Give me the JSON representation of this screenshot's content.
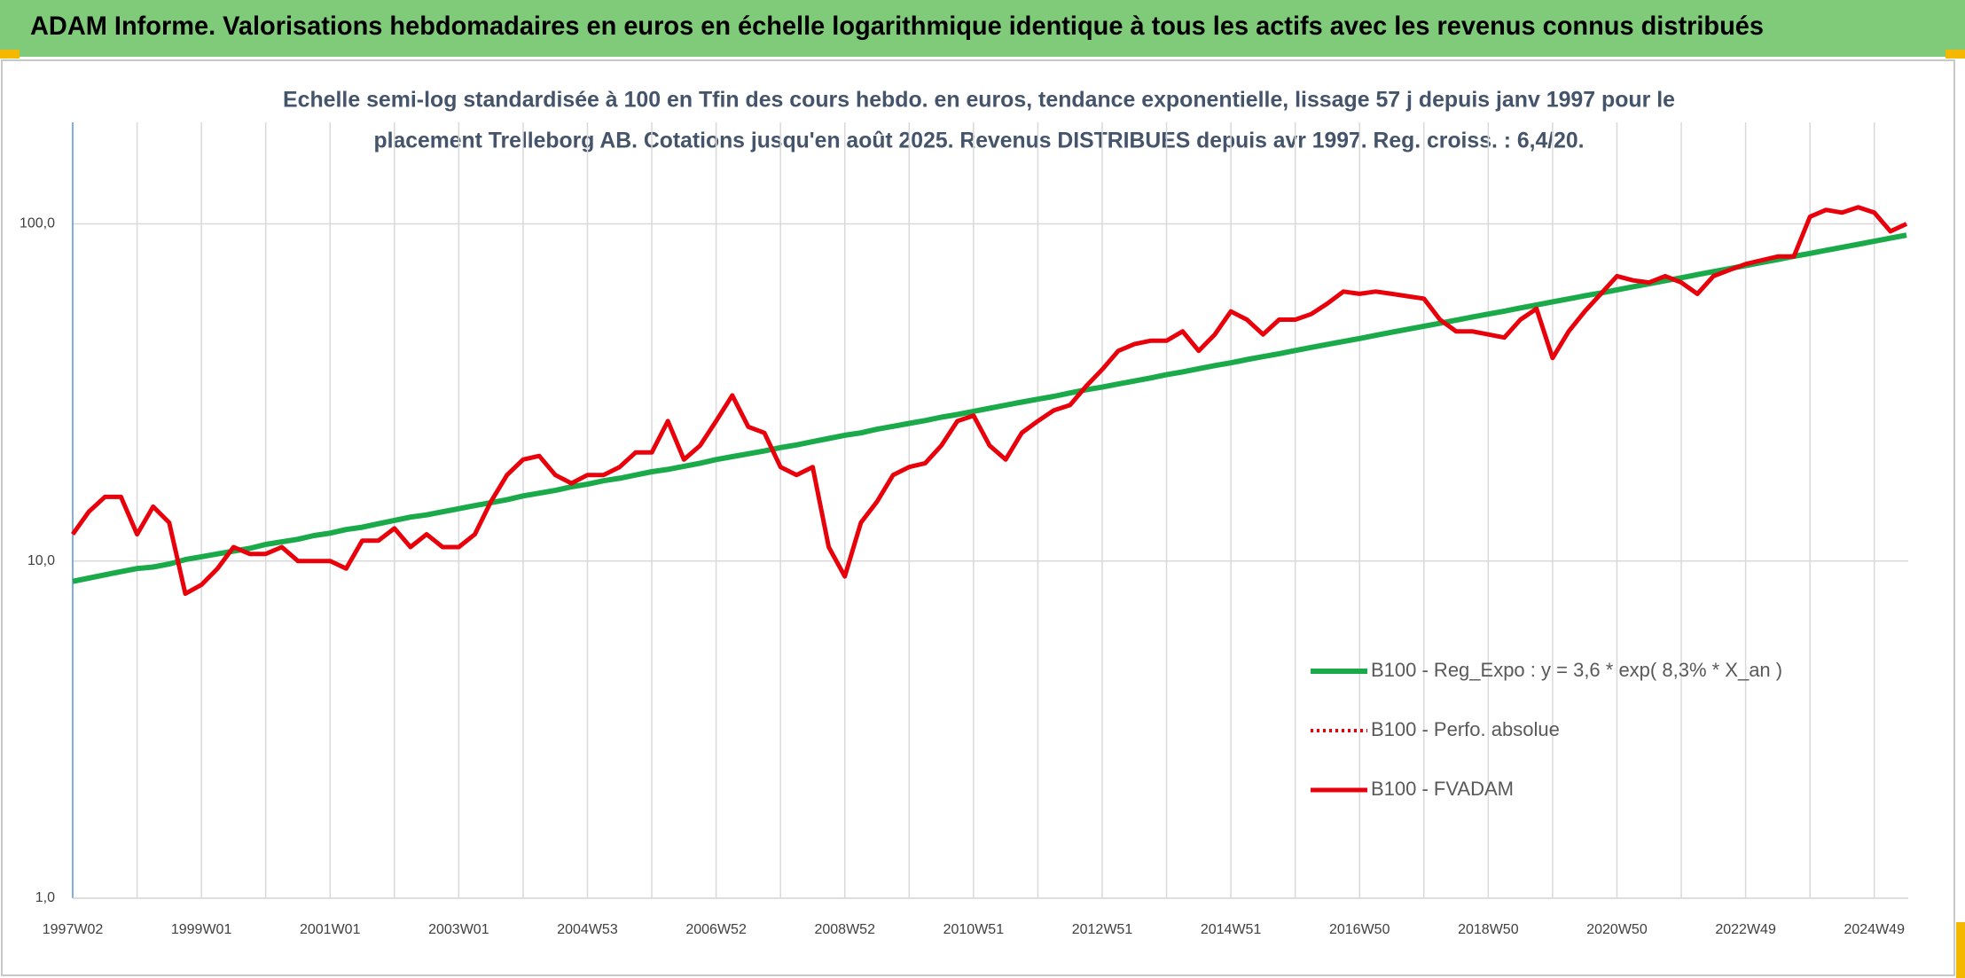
{
  "chart_data": {
    "type": "line",
    "title": "ADAM Informe. Valorisations hebdomadaires en euros en échelle logarithmique identique à tous les actifs avec les revenus connus distribués",
    "subtitle": [
      "Echelle semi-log standardisée à 100 en Tfin des cours hebdo. en euros, tendance exponentielle, lissage 57 j depuis janv 1997 pour le",
      "placement Trelleborg AB. Cotations jusqu'en août 2025. Revenus DISTRIBUES depuis avr 1997. Reg. croiss. : 6,4/20."
    ],
    "log_scale": true,
    "grid": true,
    "legend": "lower right",
    "ylim": [
      1,
      200
    ],
    "yticks": [
      {
        "value": 1,
        "label": "1,0"
      },
      {
        "value": 10,
        "label": "10,0"
      },
      {
        "value": 100,
        "label": "100,0"
      }
    ],
    "categories": [
      "1997W02",
      null,
      null,
      null,
      null,
      null,
      null,
      null,
      "1999W01",
      null,
      null,
      null,
      null,
      null,
      null,
      null,
      "2001W01",
      null,
      null,
      null,
      null,
      null,
      null,
      null,
      "2003W01",
      null,
      null,
      null,
      null,
      null,
      null,
      null,
      "2004W53",
      null,
      null,
      null,
      null,
      null,
      null,
      null,
      "2006W52",
      null,
      null,
      null,
      null,
      null,
      null,
      null,
      "2008W52",
      null,
      null,
      null,
      null,
      null,
      null,
      null,
      "2010W51",
      null,
      null,
      null,
      null,
      null,
      null,
      null,
      "2012W51",
      null,
      null,
      null,
      null,
      null,
      null,
      null,
      "2014W51",
      null,
      null,
      null,
      null,
      null,
      null,
      null,
      "2016W50",
      null,
      null,
      null,
      null,
      null,
      null,
      null,
      "2018W50",
      null,
      null,
      null,
      null,
      null,
      null,
      null,
      "2020W50",
      null,
      null,
      null,
      null,
      null,
      null,
      null,
      "2022W49",
      null,
      null,
      null,
      null,
      null,
      null,
      null,
      "2024W49",
      null,
      null
    ],
    "series": [
      {
        "name": "B100 - Reg_Expo : y = 3,6 * exp( 8,3% *  X_an )",
        "color": "#1aaa4a",
        "width": 6,
        "values": [
          8.7,
          8.9,
          9.1,
          9.3,
          9.5,
          9.6,
          9.8,
          10.1,
          10.3,
          10.5,
          10.7,
          10.9,
          11.2,
          11.4,
          11.6,
          11.9,
          12.1,
          12.4,
          12.6,
          12.9,
          13.2,
          13.5,
          13.7,
          14.0,
          14.3,
          14.6,
          14.9,
          15.2,
          15.6,
          15.9,
          16.2,
          16.6,
          16.9,
          17.3,
          17.6,
          18.0,
          18.4,
          18.7,
          19.1,
          19.5,
          20.0,
          20.4,
          20.8,
          21.2,
          21.7,
          22.1,
          22.6,
          23.1,
          23.6,
          24.0,
          24.6,
          25.1,
          25.6,
          26.1,
          26.7,
          27.2,
          27.8,
          28.4,
          29.0,
          29.6,
          30.2,
          30.8,
          31.5,
          32.2,
          32.8,
          33.5,
          34.2,
          34.9,
          35.7,
          36.4,
          37.2,
          38.0,
          38.7,
          39.6,
          40.4,
          41.2,
          42.1,
          43.0,
          43.9,
          44.8,
          45.7,
          46.7,
          47.7,
          48.7,
          49.7,
          50.7,
          51.8,
          52.9,
          54.0,
          55.1,
          56.3,
          57.5,
          58.7,
          59.9,
          61.2,
          62.4,
          63.7,
          65.1,
          66.4,
          67.8,
          69.2,
          70.7,
          72.2,
          73.7,
          75.2,
          76.8,
          78.4,
          80.1,
          81.7,
          83.5,
          85.2,
          87.0,
          88.8,
          90.7,
          92.6
        ]
      },
      {
        "name": "B100 - Perfo. absolue",
        "color": "#e8000b",
        "width": 4,
        "dash": "dotted"
      },
      {
        "name": "B100 - FVADAM",
        "color": "#e8000b",
        "width": 5,
        "values": [
          12,
          14,
          15.5,
          15.5,
          12,
          14.5,
          13,
          8,
          8.5,
          9.5,
          11,
          10.5,
          10.5,
          11,
          10,
          10,
          10,
          9.5,
          11.5,
          11.5,
          12.5,
          11,
          12,
          11,
          11,
          12,
          15,
          18,
          20,
          20.5,
          18,
          17,
          18,
          18,
          19,
          21,
          21,
          26,
          20,
          22,
          26,
          31,
          25,
          24,
          19,
          18,
          19,
          11,
          9,
          13,
          15,
          18,
          19,
          19.5,
          22,
          26,
          27,
          22,
          20,
          24,
          26,
          28,
          29,
          33,
          37,
          42,
          44,
          45,
          45,
          48,
          42,
          47,
          55,
          52,
          47,
          52,
          52,
          54,
          58,
          63,
          62,
          63,
          62,
          61,
          60,
          52,
          48,
          48,
          47,
          46,
          52,
          56,
          40,
          48,
          55,
          62,
          70,
          68,
          67,
          70,
          67,
          62,
          70,
          73,
          76,
          78,
          80,
          80,
          105,
          110,
          108,
          112,
          108,
          95,
          100
        ]
      }
    ]
  }
}
